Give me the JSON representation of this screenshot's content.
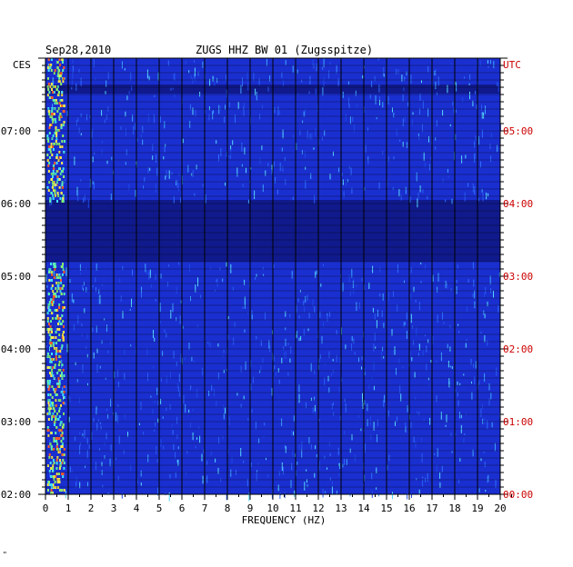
{
  "header": {
    "date": "Sep28,2010",
    "station": "ZUGS HHZ BW 01 (Zugsspitze)",
    "left_tz": "CES",
    "right_tz": "UTC"
  },
  "chart_data": {
    "type": "heatmap",
    "title": "ZUGS HHZ BW 01 (Zugsspitze)",
    "xlabel": "FREQUENCY (HZ)",
    "xlim": [
      0,
      20
    ],
    "x_ticks": [
      "0",
      "1",
      "2",
      "3",
      "4",
      "5",
      "6",
      "7",
      "8",
      "9",
      "10",
      "11",
      "12",
      "13",
      "14",
      "15",
      "16",
      "17",
      "18",
      "19",
      "20"
    ],
    "left_axis_label": "CES",
    "left_ticks": [
      "07:00",
      "06:00",
      "05:00",
      "04:00",
      "03:00",
      "02:00"
    ],
    "right_axis_label": "UTC",
    "right_ticks": [
      "05:00",
      "04:00",
      "03:00",
      "02:00",
      "01:00",
      "00:00"
    ],
    "colors": {
      "background": "#1a2fd0",
      "quiet": "#101a8c",
      "grid": "#000000",
      "left_labels": "#000000",
      "right_labels": "#cc0000"
    }
  },
  "footer": {
    "mark": "\""
  }
}
